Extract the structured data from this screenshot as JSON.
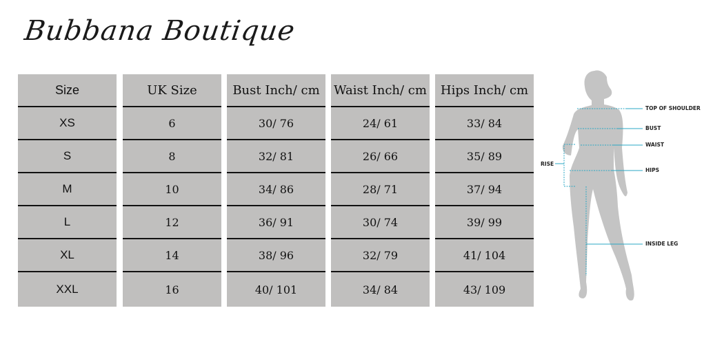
{
  "brand": "Bubbana Boutique",
  "table": {
    "headers": [
      "Size",
      "UK Size",
      "Bust Inch/ cm",
      "Waist Inch/ cm",
      "Hips Inch/ cm"
    ],
    "rows": [
      [
        "XS",
        "6",
        "30/ 76",
        "24/ 61",
        "33/ 84"
      ],
      [
        "S",
        "8",
        "32/ 81",
        "26/ 66",
        "35/ 89"
      ],
      [
        "M",
        "10",
        "34/ 86",
        "28/ 71",
        "37/ 94"
      ],
      [
        "L",
        "12",
        "36/ 91",
        "30/ 74",
        "39/ 99"
      ],
      [
        "XL",
        "14",
        "38/ 96",
        "32/ 79",
        "41/ 104"
      ],
      [
        "XXL",
        "16",
        "40/ 101",
        "34/ 84",
        "43/ 109"
      ]
    ]
  },
  "figure": {
    "labels": {
      "shoulder": "TOP OF SHOULDER",
      "bust": "BUST",
      "waist": "WAIST",
      "hips": "HIPS",
      "rise": "RISE",
      "inside_leg": "INSIDE LEG"
    },
    "colors": {
      "line": "#2aa7c4",
      "silhouette": "#c4c4c4",
      "cell": "#c0bfbe"
    }
  }
}
